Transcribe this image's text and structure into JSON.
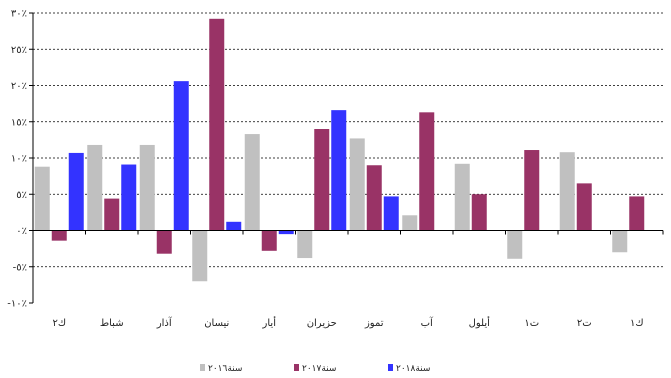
{
  "chart_data": {
    "type": "bar",
    "categories": [
      "ك٢",
      "شباط",
      "آذار",
      "نيسان",
      "أيار",
      "حزيران",
      "تموز",
      "آب",
      "أيلول",
      "ت١",
      "ت٢",
      "ك١"
    ],
    "series": [
      {
        "name": "سنة٢٠١٦",
        "color": "#c0c0c0",
        "values": [
          8.8,
          11.8,
          11.8,
          -7.0,
          13.3,
          -3.8,
          12.7,
          2.1,
          9.2,
          -3.9,
          10.8,
          -3.0
        ]
      },
      {
        "name": "سنة٢٠١٧",
        "color": "#993366",
        "values": [
          -1.4,
          4.4,
          -3.2,
          29.2,
          -2.8,
          14.0,
          9.0,
          16.3,
          5.0,
          11.1,
          6.5,
          4.7
        ]
      },
      {
        "name": "سنة٢٠١٨",
        "color": "#3333ff",
        "values": [
          10.7,
          9.1,
          20.6,
          1.2,
          -0.5,
          16.6,
          4.7,
          null,
          null,
          null,
          null,
          null
        ]
      }
    ],
    "y_ticks": [
      "٣٠٪",
      "٢٥٪",
      "٢٠٪",
      "١٥٪",
      "١٠٪",
      "٥٪",
      "٠٪",
      "-٥٪",
      "-١٠٪"
    ],
    "ylim": [
      -10,
      30
    ],
    "grid": true,
    "legend": "bottom"
  }
}
